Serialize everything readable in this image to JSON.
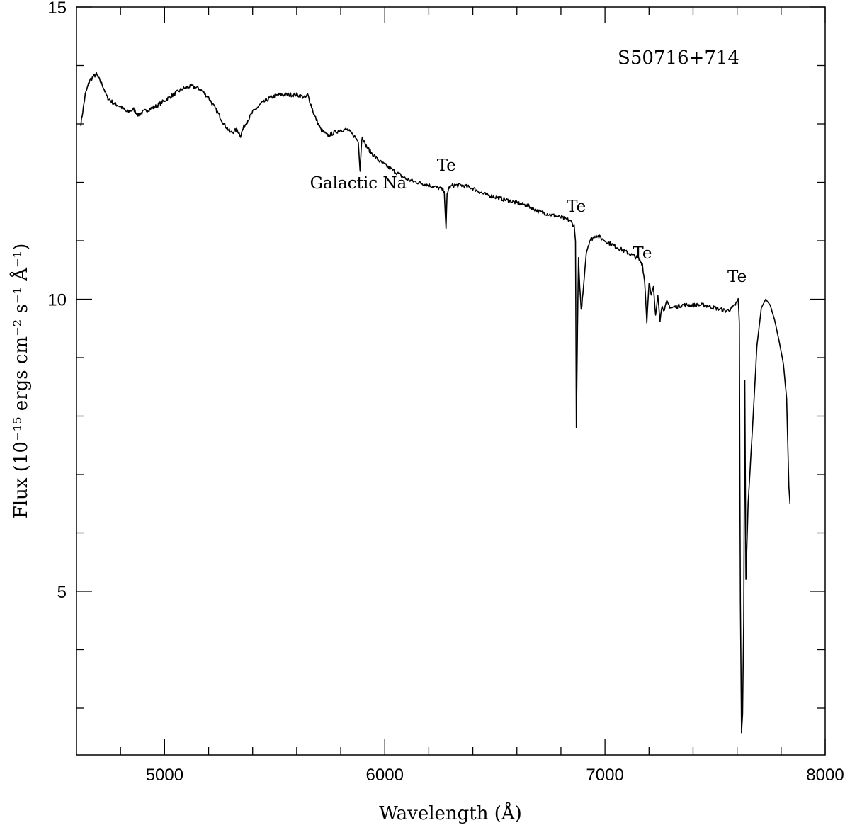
{
  "chart_data": {
    "type": "line",
    "title": "S50716+714",
    "xlabel": "Wavelength (Å)",
    "ylabel": "Flux (10⁻¹⁵ ergs cm⁻² s⁻¹ Å⁻¹)",
    "xlim": [
      4600,
      8000
    ],
    "ylim": [
      2.2,
      15
    ],
    "x_major_ticks": [
      5000,
      6000,
      7000,
      8000
    ],
    "x_minor_step": 200,
    "y_major_ticks": [
      5,
      10,
      15
    ],
    "y_minor_step": 1,
    "grid": false,
    "annotations": [
      {
        "text": "Galactic Na",
        "x": 5880,
        "y": 11.9
      },
      {
        "text": "Te",
        "x": 6280,
        "y": 12.2
      },
      {
        "text": "Te",
        "x": 6870,
        "y": 11.5
      },
      {
        "text": "Te",
        "x": 7170,
        "y": 10.7
      },
      {
        "text": "Te",
        "x": 7600,
        "y": 10.3
      }
    ],
    "series": [
      {
        "x": [
          4620,
          4640,
          4660,
          4690,
          4720,
          4740,
          4770,
          4800,
          4830,
          4860,
          4880,
          4900,
          4930,
          4960,
          5000,
          5040,
          5080,
          5120,
          5160,
          5200,
          5240,
          5270,
          5300,
          5330,
          5345,
          5360,
          5400,
          5440,
          5480,
          5520,
          5560,
          5600,
          5640,
          5650,
          5680,
          5710,
          5740,
          5770,
          5800,
          5830,
          5860,
          5880,
          5888,
          5893,
          5898,
          5910,
          5940,
          5980,
          6020,
          6060,
          6100,
          6150,
          6200,
          6250,
          6270,
          6278,
          6283,
          6290,
          6310,
          6350,
          6400,
          6450,
          6500,
          6550,
          6600,
          6650,
          6700,
          6750,
          6800,
          6840,
          6860,
          6866,
          6870,
          6875,
          6880,
          6885,
          6892,
          6900,
          6915,
          6930,
          6960,
          7000,
          7050,
          7100,
          7150,
          7170,
          7180,
          7185,
          7190,
          7200,
          7210,
          7220,
          7230,
          7240,
          7250,
          7260,
          7270,
          7280,
          7300,
          7350,
          7400,
          7450,
          7500,
          7550,
          7580,
          7600,
          7605,
          7610,
          7615,
          7620,
          7625,
          7630,
          7635,
          7640,
          7650,
          7670,
          7690,
          7710,
          7730,
          7750,
          7770,
          7790,
          7810,
          7825,
          7835,
          7840
        ],
        "y": [
          13.0,
          13.5,
          13.75,
          13.85,
          13.65,
          13.45,
          13.35,
          13.3,
          13.2,
          13.25,
          13.15,
          13.2,
          13.25,
          13.3,
          13.4,
          13.5,
          13.6,
          13.65,
          13.6,
          13.45,
          13.2,
          13.0,
          12.85,
          12.9,
          12.8,
          12.95,
          13.2,
          13.35,
          13.45,
          13.5,
          13.5,
          13.5,
          13.45,
          13.5,
          13.15,
          12.9,
          12.8,
          12.85,
          12.9,
          12.9,
          12.8,
          12.7,
          12.2,
          12.6,
          12.8,
          12.65,
          12.5,
          12.35,
          12.25,
          12.15,
          12.05,
          12.0,
          11.95,
          11.9,
          11.85,
          11.2,
          11.8,
          11.9,
          11.95,
          11.95,
          11.9,
          11.8,
          11.75,
          11.7,
          11.65,
          11.6,
          11.5,
          11.45,
          11.4,
          11.35,
          11.25,
          11.0,
          7.8,
          9.5,
          10.7,
          10.2,
          9.8,
          10.1,
          10.8,
          11.0,
          11.1,
          11.0,
          10.9,
          10.8,
          10.7,
          10.6,
          10.3,
          10.0,
          9.6,
          10.3,
          10.05,
          10.2,
          9.7,
          10.1,
          9.65,
          9.9,
          9.8,
          9.95,
          9.85,
          9.9,
          9.9,
          9.9,
          9.85,
          9.8,
          9.85,
          9.95,
          10.0,
          9.6,
          4.8,
          2.6,
          2.9,
          4.5,
          8.6,
          5.2,
          6.5,
          7.8,
          9.2,
          9.85,
          10.0,
          9.9,
          9.65,
          9.3,
          8.9,
          8.3,
          6.8,
          6.5
        ]
      }
    ]
  }
}
